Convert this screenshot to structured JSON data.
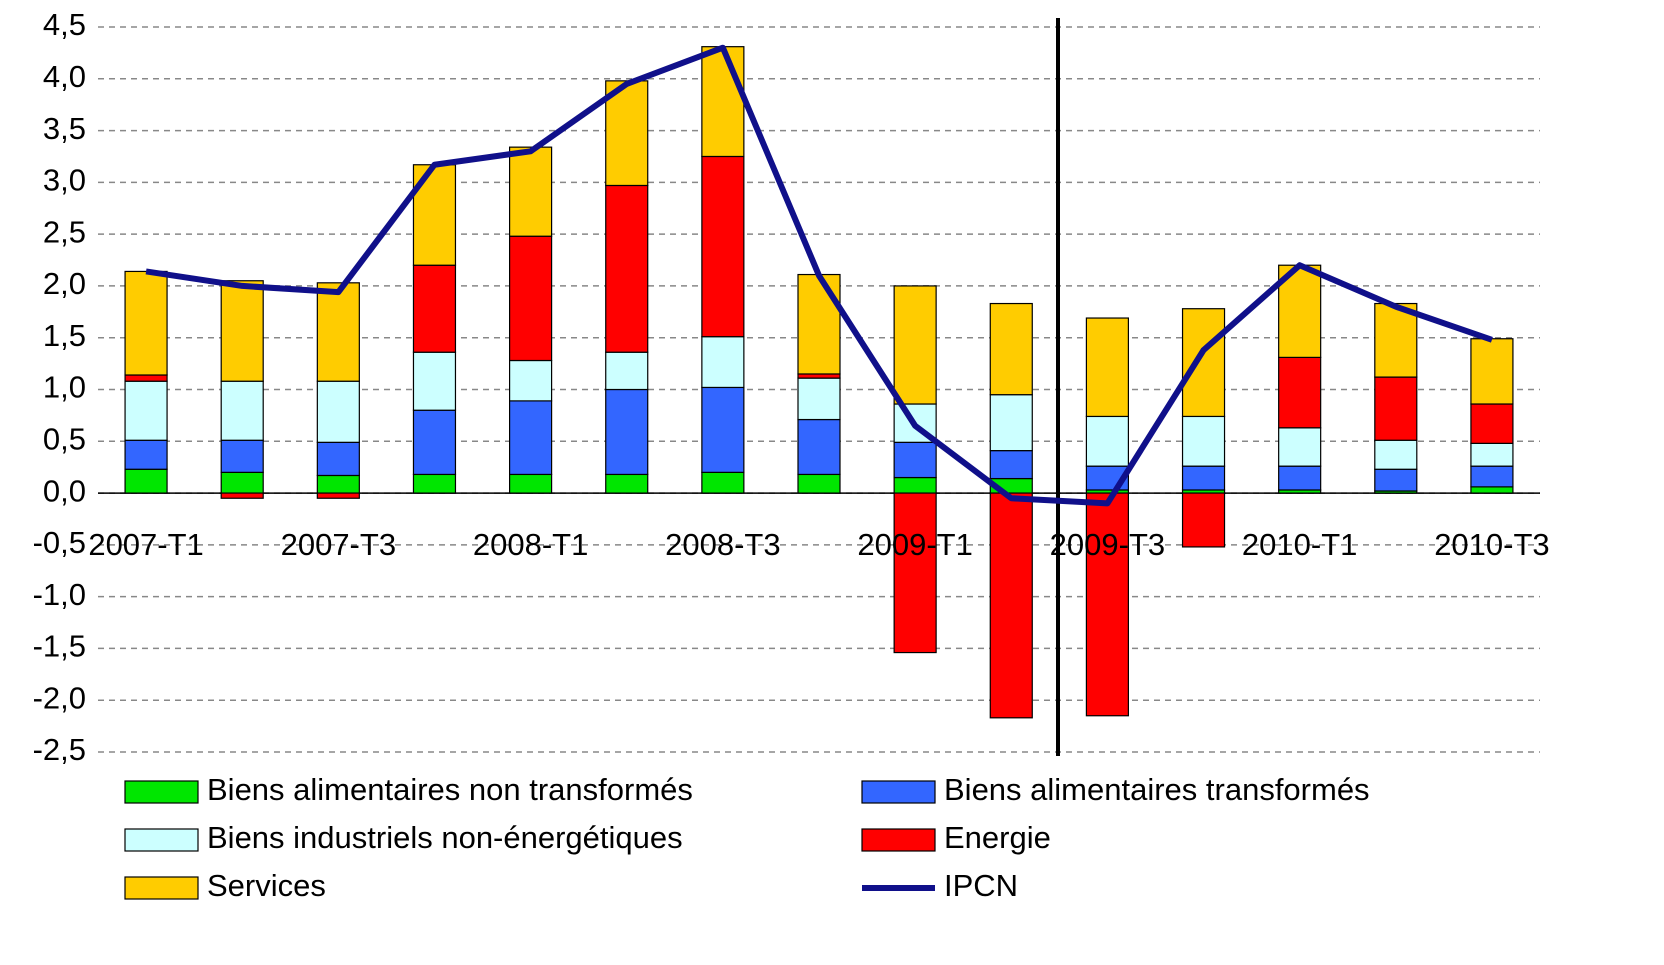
{
  "chart_data": {
    "type": "bar",
    "stacked": true,
    "categories": [
      "2007-T1",
      null,
      "2007-T3",
      null,
      "2008-T1",
      null,
      "2008-T3",
      null,
      "2009-T1",
      null,
      "2009-T3",
      null,
      "2010-T1",
      null,
      "2010-T3"
    ],
    "ylim": [
      -2.5,
      4.5
    ],
    "yticks": [
      {
        "value": -2.5,
        "label": "-2,5"
      },
      {
        "value": -2,
        "label": "-2,0"
      },
      {
        "value": -1.5,
        "label": "-1,5"
      },
      {
        "value": -1,
        "label": "-1,0"
      },
      {
        "value": -0.5,
        "label": "-0,5"
      },
      {
        "value": 0,
        "label": "0,0"
      },
      {
        "value": 0.5,
        "label": "0,5"
      },
      {
        "value": 1,
        "label": "1,0"
      },
      {
        "value": 1.5,
        "label": "1,5"
      },
      {
        "value": 2,
        "label": "2,0"
      },
      {
        "value": 2.5,
        "label": "2,5"
      },
      {
        "value": 3,
        "label": "3,0"
      },
      {
        "value": 3.5,
        "label": "3,5"
      },
      {
        "value": 4,
        "label": "4,0"
      },
      {
        "value": 4.5,
        "label": "4,5"
      }
    ],
    "grid": true,
    "series": [
      {
        "name": "Biens alimentaires non transformés",
        "color": "#00e600",
        "values": [
          0.23,
          0.2,
          0.17,
          0.18,
          0.18,
          0.18,
          0.2,
          0.18,
          0.15,
          0.14,
          0.03,
          0.03,
          0.03,
          0.02,
          0.06
        ]
      },
      {
        "name": "Biens alimentaires transformés",
        "color": "#3366ff",
        "values": [
          0.28,
          0.31,
          0.32,
          0.62,
          0.71,
          0.82,
          0.82,
          0.53,
          0.34,
          0.27,
          0.23,
          0.23,
          0.23,
          0.21,
          0.2
        ]
      },
      {
        "name": "Biens industriels non-énergétiques",
        "color": "#ccffff",
        "values": [
          0.57,
          0.57,
          0.59,
          0.56,
          0.39,
          0.36,
          0.49,
          0.4,
          0.37,
          0.54,
          0.48,
          0.48,
          0.37,
          0.28,
          0.22
        ]
      },
      {
        "name": "Energie",
        "color": "#ff0000",
        "values": [
          0.06,
          -0.05,
          -0.05,
          0.84,
          1.2,
          1.61,
          1.74,
          0.04,
          -1.54,
          -2.17,
          -2.15,
          -0.52,
          0.68,
          0.61,
          0.38
        ]
      },
      {
        "name": "Services",
        "color": "#ffcc00",
        "values": [
          1.0,
          0.97,
          0.95,
          0.97,
          0.86,
          1.01,
          1.06,
          0.96,
          1.14,
          0.88,
          0.95,
          1.04,
          0.89,
          0.71,
          0.63
        ]
      },
      {
        "name": "IPCN",
        "color": "#10108a",
        "type": "line",
        "values": [
          2.14,
          2.0,
          1.94,
          3.17,
          3.3,
          3.95,
          4.3,
          2.1,
          0.65,
          -0.05,
          -0.1,
          1.38,
          2.2,
          1.8,
          1.48
        ]
      }
    ]
  }
}
